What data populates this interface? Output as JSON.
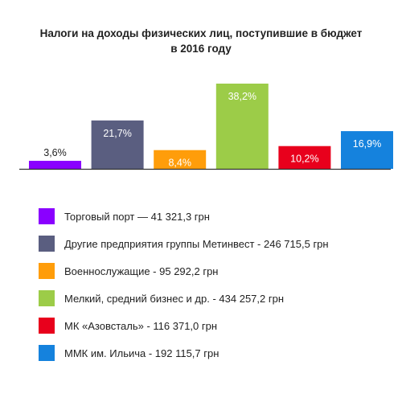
{
  "chart_data": {
    "type": "bar",
    "title_lines": [
      "Налоги на доходы физических лиц, поступившие в бюджет",
      "в 2016 году"
    ],
    "categories": [
      "Торговый порт — 41 321,3 грн",
      "Другие предприятия группы Метинвест - 246 715,5 грн",
      "Военнослужащие - 95 292,2 грн",
      "Мелкий, средний бизнес и др. - 434 257,2 грн",
      "МК «Азовсталь» - 116 371,0 грн",
      "ММК им. Ильича - 192 115,7 грн"
    ],
    "values": [
      3.6,
      21.7,
      8.4,
      38.2,
      10.2,
      16.9
    ],
    "value_labels": [
      "3,6%",
      "21,7%",
      "8,4%",
      "38,2%",
      "10,2%",
      "16,9%"
    ],
    "colors": [
      "#8a00ff",
      "#5a5e80",
      "#ff9d0a",
      "#9ccc48",
      "#e8001c",
      "#1582dd"
    ],
    "label_colors": [
      "#222222",
      "#ffffff",
      "#ffffff",
      "#ffffff",
      "#ffffff",
      "#ffffff"
    ],
    "ylim": [
      0,
      38.2
    ],
    "grid": false,
    "legend_position": "bottom",
    "xlabel": "",
    "ylabel": ""
  }
}
